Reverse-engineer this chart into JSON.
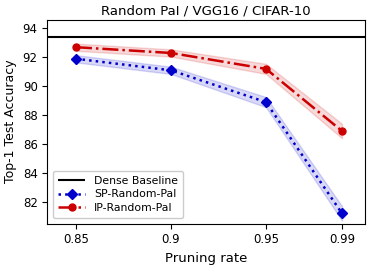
{
  "title": "Random PaI / VGG16 / CIFAR-10",
  "xlabel": "Pruning rate",
  "ylabel": "Top-1 Test Accuracy",
  "x": [
    0.85,
    0.9,
    0.95,
    0.99
  ],
  "sp_mean": [
    91.9,
    91.1,
    88.9,
    81.2
  ],
  "sp_std": [
    0.25,
    0.25,
    0.35,
    0.5
  ],
  "ip_mean": [
    92.7,
    92.3,
    91.2,
    86.9
  ],
  "ip_std": [
    0.25,
    0.25,
    0.35,
    0.5
  ],
  "dense_baseline": 93.4,
  "sp_color": "#0000cc",
  "ip_color": "#cc0000",
  "baseline_color": "#000000",
  "ylim": [
    80.5,
    94.6
  ],
  "yticks": [
    82,
    84,
    86,
    88,
    90,
    92,
    94
  ],
  "xticks": [
    0.85,
    0.9,
    0.95,
    0.99
  ],
  "xlim": [
    0.835,
    1.002
  ],
  "figsize": [
    3.69,
    2.69
  ],
  "dpi": 100
}
